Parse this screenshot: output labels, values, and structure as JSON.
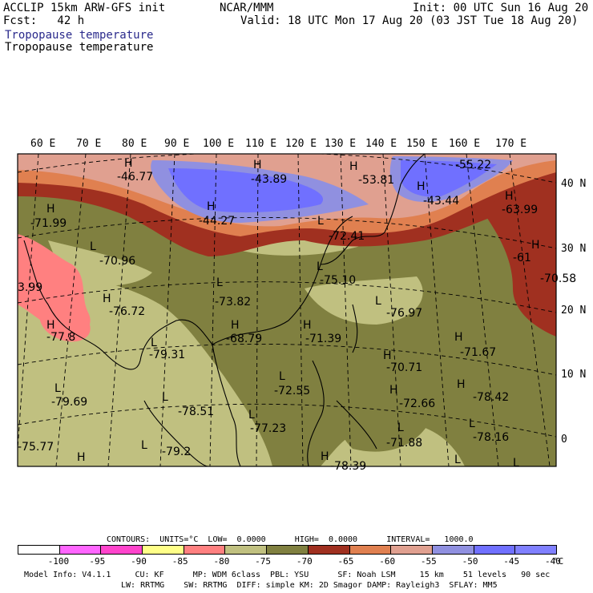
{
  "header": {
    "left1": "ACCLIP 15km ARW-GFS init",
    "left2": "Fcst:   42 h",
    "center": "NCAR/MMM",
    "right1": "Init: 00 UTC Sun 16 Aug 20",
    "right2": "Valid: 18 UTC Mon 17 Aug 20 (03 JST Tue 18 Aug 20)",
    "field1": "Tropopause temperature",
    "field2": "Tropopause temperature",
    "field1_color": "#2a2a8c"
  },
  "lon_labels": [
    "60 E",
    "70 E",
    "80 E",
    "90 E",
    "100 E",
    "110 E",
    "120 E",
    "130 E",
    "140 E",
    "150 E",
    "160 E",
    "170 E"
  ],
  "lat_labels": [
    "40 N",
    "30 N",
    "20 N",
    "10 N",
    "0"
  ],
  "map_labels": [
    {
      "t": "H",
      "k": "high"
    },
    {
      "t": "-46.77",
      "k": "val"
    },
    {
      "t": "H",
      "k": "high"
    },
    {
      "t": "-43.89",
      "k": "val"
    },
    {
      "t": "H",
      "k": "high"
    },
    {
      "t": "-53.81",
      "k": "val"
    },
    {
      "t": "-55.22",
      "k": "val"
    },
    {
      "t": "H",
      "k": "high"
    },
    {
      "t": "-43.44",
      "k": "val"
    },
    {
      "t": "H",
      "k": "high"
    },
    {
      "t": "-63.99",
      "k": "val"
    },
    {
      "t": "H",
      "k": "high"
    },
    {
      "t": "-71.99",
      "k": "val"
    },
    {
      "t": "H",
      "k": "high"
    },
    {
      "t": "-44.27",
      "k": "val"
    },
    {
      "t": "L",
      "k": "low"
    },
    {
      "t": "-72.41",
      "k": "val"
    },
    {
      "t": "H",
      "k": "high"
    },
    {
      "t": "-61",
      "k": "val"
    },
    {
      "t": "L",
      "k": "low"
    },
    {
      "t": "-70.96",
      "k": "val"
    },
    {
      "t": "L",
      "k": "low"
    },
    {
      "t": "-75.10",
      "k": "val"
    },
    {
      "t": "-70.58",
      "k": "val"
    },
    {
      "t": "3.99",
      "k": "val"
    },
    {
      "t": "L",
      "k": "low"
    },
    {
      "t": "-73.82",
      "k": "val"
    },
    {
      "t": "H",
      "k": "high"
    },
    {
      "t": "-76.72",
      "k": "val"
    },
    {
      "t": "L",
      "k": "low"
    },
    {
      "t": "-76.97",
      "k": "val"
    },
    {
      "t": "H",
      "k": "high"
    },
    {
      "t": "-77.8",
      "k": "val"
    },
    {
      "t": "H",
      "k": "high"
    },
    {
      "t": "-68.79",
      "k": "val"
    },
    {
      "t": "H",
      "k": "high"
    },
    {
      "t": "-71.39",
      "k": "val"
    },
    {
      "t": "H",
      "k": "high"
    },
    {
      "t": "-71.67",
      "k": "val"
    },
    {
      "t": "L",
      "k": "low"
    },
    {
      "t": "-79.31",
      "k": "val"
    },
    {
      "t": "H",
      "k": "high"
    },
    {
      "t": "-70.71",
      "k": "val"
    },
    {
      "t": "L",
      "k": "low"
    },
    {
      "t": "-72.55",
      "k": "val"
    },
    {
      "t": "H",
      "k": "high"
    },
    {
      "t": "-78.42",
      "k": "val"
    },
    {
      "t": "L",
      "k": "low"
    },
    {
      "t": "-79.69",
      "k": "val"
    },
    {
      "t": "L",
      "k": "low"
    },
    {
      "t": "-78.51",
      "k": "val"
    },
    {
      "t": "H",
      "k": "high"
    },
    {
      "t": "-72.66",
      "k": "val"
    },
    {
      "t": "L",
      "k": "low"
    },
    {
      "t": "-77.23",
      "k": "val"
    },
    {
      "t": "L",
      "k": "low"
    },
    {
      "t": "-71.88",
      "k": "val"
    },
    {
      "t": "L",
      "k": "low"
    },
    {
      "t": "-78.16",
      "k": "val"
    },
    {
      "t": "-75.77",
      "k": "val"
    },
    {
      "t": "H",
      "k": "high"
    },
    {
      "t": "L",
      "k": "low"
    },
    {
      "t": "-79.2",
      "k": "val"
    },
    {
      "t": "H",
      "k": "high"
    },
    {
      "t": "-78.39",
      "k": "val"
    },
    {
      "t": "L",
      "k": "low"
    },
    {
      "t": "L",
      "k": "low"
    }
  ],
  "contours_line": "CONTOURS:  UNITS=°C  LOW=  0.0000      HIGH=  0.0000      INTERVAL=   1000.0",
  "colorbar": {
    "colors": [
      "#ffffff",
      "#ff66ff",
      "#ff44cc",
      "#ffff88",
      "#ff8080",
      "#c0c080",
      "#808040",
      "#a03020",
      "#e08050",
      "#e0a090",
      "#9090e0",
      "#7070ff",
      "#8080ff"
    ],
    "labels": [
      "-100",
      "-95",
      "-90",
      "-85",
      "-80",
      "-75",
      "-70",
      "-65",
      "-60",
      "-55",
      "-50",
      "-45",
      "-40"
    ],
    "unit": "°C"
  },
  "model_info1": "Model Info: V4.1.1     CU: KF      MP: WDM 6class  PBL: YSU      SF: Noah LSM     15 km    51 levels   90 sec",
  "model_info2": "LW: RRTMG    SW: RRTMG  DIFF: simple KM: 2D Smagor DAMP: Rayleigh3  SFLAY: MM5"
}
